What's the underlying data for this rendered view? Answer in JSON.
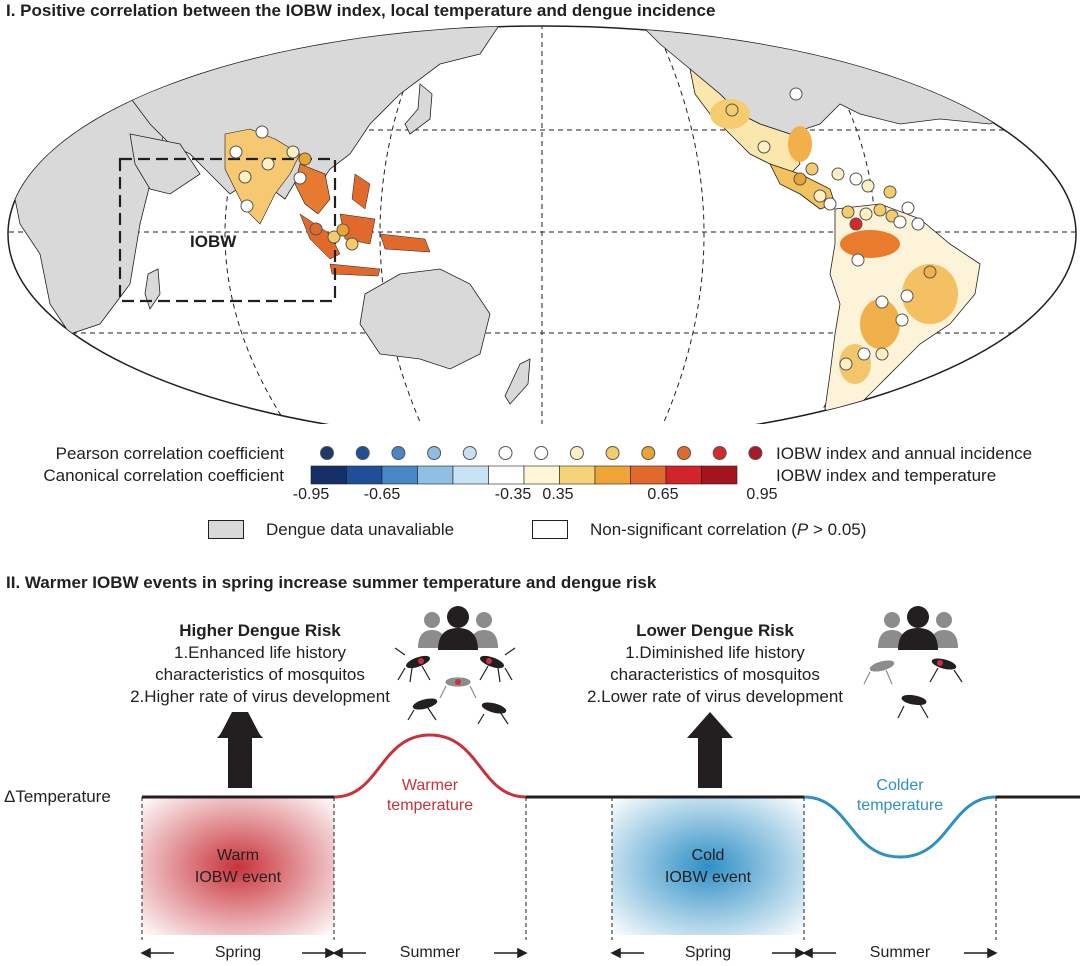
{
  "panel1": {
    "title": "I. Positive correlation between the IOBW index, local temperature and dengue incidence",
    "region_label": "IOBW"
  },
  "legend": {
    "pearson_label": "Pearson correlation coefficient",
    "canonical_label": "Canonical correlation coefficient",
    "pearson_right": "IOBW index and annual incidence",
    "canonical_right": "IOBW index and temperature",
    "dot_colors": [
      "#1b3a6b",
      "#1f4f94",
      "#4a86c4",
      "#8dbde2",
      "#c6e2f2",
      "#ffffff",
      "#ffffff",
      "#fdf0c3",
      "#f4cd6a",
      "#eda32f",
      "#df6a2e",
      "#d42a2a",
      "#a8182a"
    ],
    "bar_colors": [
      "#152f68",
      "#1f4f99",
      "#4a87c6",
      "#8fbfe3",
      "#c8e3f3",
      "#ffffff",
      "#fff6d5",
      "#f6d278",
      "#eea536",
      "#e2692c",
      "#d1252b",
      "#a3141f"
    ],
    "ticks": [
      "-0.95",
      "-0.65",
      "-0.35",
      "0.35",
      "0.65",
      "0.95"
    ],
    "unavailable_label": "Dengue data unavaliable",
    "nonsig_prefix": "Non-significant correlation (",
    "nonsig_p": "P",
    "nonsig_suffix": " > 0.05)"
  },
  "panel2": {
    "title": "II. Warmer IOBW events in spring increase summer temperature and dengue risk",
    "higher": {
      "head": "Higher Dengue Risk",
      "line1": "1.Enhanced life history",
      "line2": "characteristics of mosquitos",
      "line3": "2.Higher rate of virus development"
    },
    "lower": {
      "head": "Lower Dengue Risk",
      "line1": "1.Diminished life history",
      "line2": "characteristics of mosquitos",
      "line3": "2.Lower rate of virus development"
    },
    "delta_label": "ΔTemperature",
    "warmer_l1": "Warmer",
    "warmer_l2": "temperature",
    "colder_l1": "Colder",
    "colder_l2": "temperature",
    "warm_l1": "Warm",
    "warm_l2": "IOBW event",
    "cold_l1": "Cold",
    "cold_l2": "IOBW event",
    "seasons": [
      "Spring",
      "Summer",
      "Spring",
      "Summer"
    ],
    "colors": {
      "warm": "#c8323a",
      "cold": "#2f8fc6"
    }
  }
}
